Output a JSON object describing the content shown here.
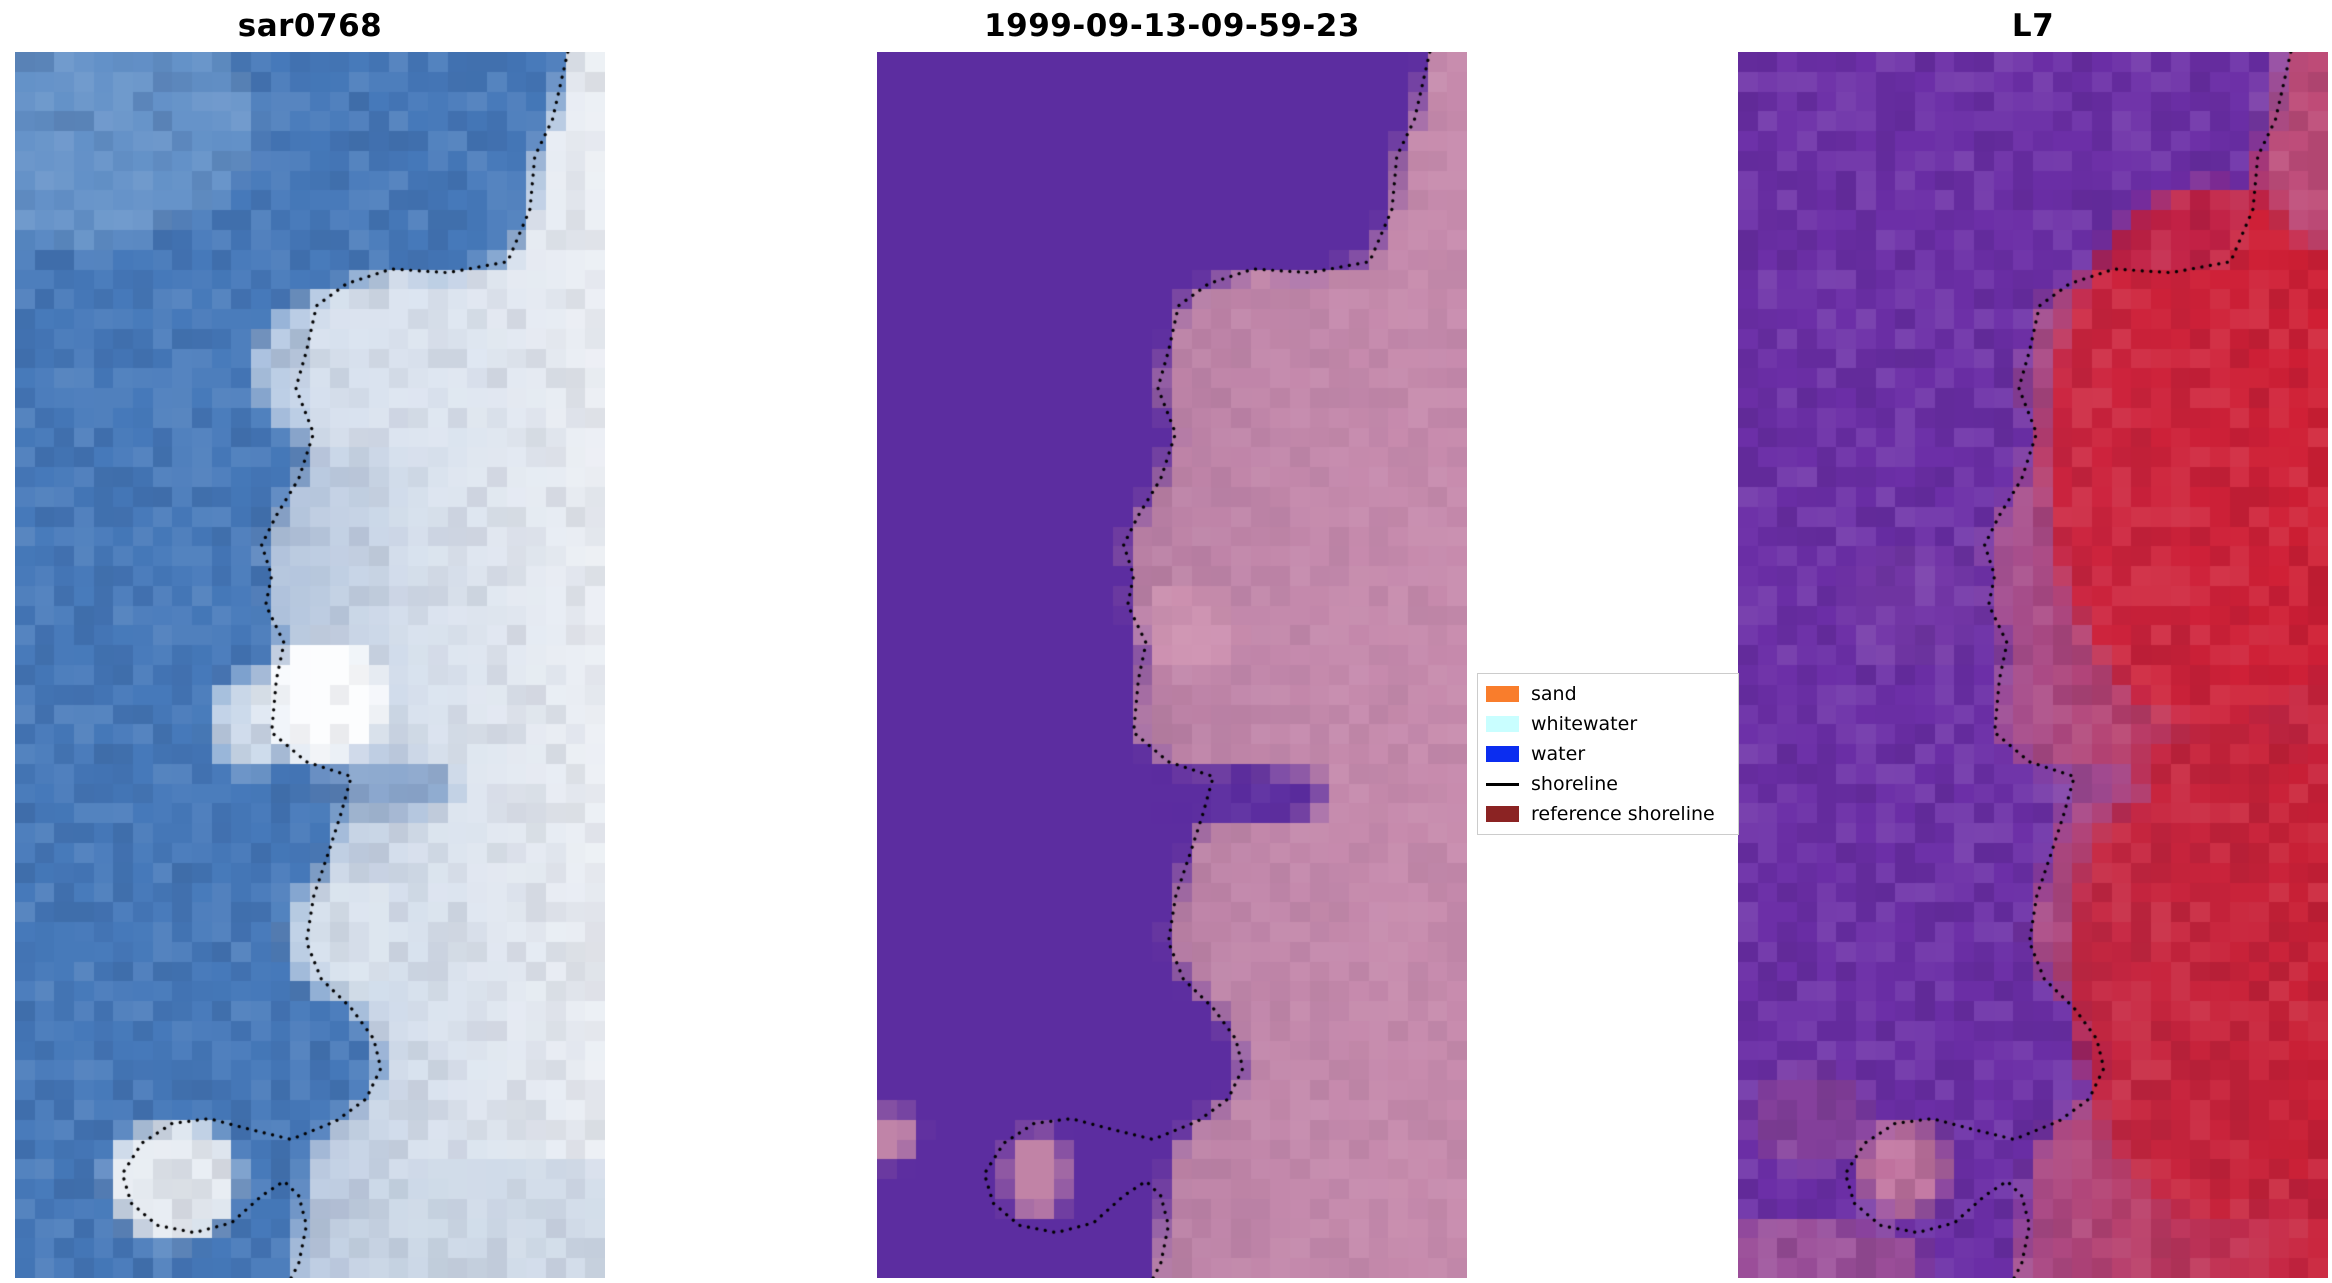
{
  "chart_data": {
    "type": "heatmap",
    "description": "Three-panel shoreline-detection figure: SAR image, classified image, and Landsat 7 image of the same coastal strip, each overlaid with the detected shoreline as a black dotted line. Water occupies the left of each panel, land/sand the right.",
    "panels": [
      {
        "title": "sar0768",
        "description": "SAR backscatter image: blue water on left, bright white/grey land on right, white blobs along coast",
        "water_color": "#4679ba",
        "land_gradient": [
          "#a8bcd8",
          "#d9e2ee",
          "#edf0f5"
        ],
        "noise": {
          "water": 0.1,
          "land": 0.08,
          "seed": 7
        },
        "blobs": [
          [
            0.12,
            0.06,
            0.3,
            0.1,
            "#7fa9d6",
            0.5
          ],
          [
            0.6,
            0.26,
            0.2,
            0.07,
            "#dfe7f1",
            0.75
          ],
          [
            0.52,
            0.53,
            0.11,
            0.05,
            "#ffffff",
            0.95
          ],
          [
            0.4,
            0.55,
            0.07,
            0.04,
            "#eef2f7",
            0.8
          ],
          [
            0.56,
            0.72,
            0.1,
            0.05,
            "#e2e9f1",
            0.75
          ],
          [
            0.62,
            0.6,
            0.13,
            0.022,
            "#5f87bd",
            0.6
          ],
          [
            0.27,
            0.92,
            0.11,
            0.05,
            "#f1f3f6",
            0.95
          ],
          [
            0.85,
            0.96,
            0.3,
            0.06,
            "#c9d5e5",
            0.7
          ]
        ]
      },
      {
        "title": "1999-09-13-09-59-23",
        "description": "Classified image: uniform purple water class on left, pink sand class on right, dotted detected shoreline at the class boundary",
        "water_color": "#5c2da0",
        "land_gradient": [
          "#b77da2",
          "#c489ac",
          "#c88cae"
        ],
        "noise": {
          "water": 0.0,
          "land": 0.05,
          "seed": 11
        },
        "blobs": [
          [
            0.62,
            0.605,
            0.14,
            0.025,
            "#5c2da0",
            1.0
          ],
          [
            0.53,
            0.47,
            0.08,
            0.04,
            "#cf93b2",
            0.9
          ],
          [
            0.025,
            0.885,
            0.045,
            0.022,
            "#c084a8",
            1.0
          ],
          [
            0.27,
            0.915,
            0.055,
            0.035,
            "#c183a6",
            1.0
          ]
        ]
      },
      {
        "title": "L7",
        "description": "Landsat 7 false-colour image: purple water on left grading to saturated red land on right, dotted detected shoreline along the boundary",
        "water_color": "#6c2fa7",
        "land_gradient": [
          "#a1559b",
          "#bb3a63",
          "#ca2038"
        ],
        "noise": {
          "water": 0.1,
          "land": 0.09,
          "seed": 23
        },
        "blobs": [
          [
            0.8,
            0.33,
            0.28,
            0.22,
            "#d11f34",
            0.85
          ],
          [
            0.82,
            0.75,
            0.26,
            0.2,
            "#cb2036",
            0.8
          ],
          [
            0.97,
            0.06,
            0.08,
            0.1,
            "#b867a0",
            0.6
          ],
          [
            0.3,
            0.45,
            0.12,
            0.05,
            "#7c3fa9",
            0.5
          ],
          [
            0.6,
            0.6,
            0.1,
            0.02,
            "#8b4fae",
            0.5
          ],
          [
            0.28,
            0.91,
            0.08,
            0.04,
            "#d07f9d",
            0.85
          ],
          [
            0.12,
            0.87,
            0.1,
            0.04,
            "#9a4f93",
            0.55
          ],
          [
            0.1,
            0.985,
            0.22,
            0.035,
            "#bb6490",
            0.6
          ]
        ]
      }
    ],
    "boundary_xy": [
      [
        0.937,
        0.0
      ],
      [
        0.911,
        0.055
      ],
      [
        0.881,
        0.085
      ],
      [
        0.873,
        0.128
      ],
      [
        0.835,
        0.171
      ],
      [
        0.734,
        0.18
      ],
      [
        0.638,
        0.177
      ],
      [
        0.562,
        0.189
      ],
      [
        0.511,
        0.207
      ],
      [
        0.494,
        0.244
      ],
      [
        0.476,
        0.274
      ],
      [
        0.506,
        0.311
      ],
      [
        0.481,
        0.348
      ],
      [
        0.443,
        0.378
      ],
      [
        0.418,
        0.402
      ],
      [
        0.435,
        0.427
      ],
      [
        0.425,
        0.451
      ],
      [
        0.456,
        0.482
      ],
      [
        0.443,
        0.512
      ],
      [
        0.435,
        0.555
      ],
      [
        0.494,
        0.579
      ],
      [
        0.57,
        0.591
      ],
      [
        0.552,
        0.622
      ],
      [
        0.532,
        0.652
      ],
      [
        0.506,
        0.689
      ],
      [
        0.494,
        0.726
      ],
      [
        0.519,
        0.756
      ],
      [
        0.57,
        0.78
      ],
      [
        0.608,
        0.805
      ],
      [
        0.62,
        0.829
      ],
      [
        0.595,
        0.854
      ],
      [
        0.544,
        0.872
      ],
      [
        0.5,
        0.9
      ],
      [
        0.49,
        0.94
      ],
      [
        0.475,
        0.97
      ],
      [
        0.468,
        1.0
      ]
    ],
    "shoreline_xy": [
      [
        0.937,
        0.0
      ],
      [
        0.911,
        0.055
      ],
      [
        0.881,
        0.085
      ],
      [
        0.873,
        0.128
      ],
      [
        0.835,
        0.171
      ],
      [
        0.734,
        0.18
      ],
      [
        0.638,
        0.177
      ],
      [
        0.562,
        0.189
      ],
      [
        0.511,
        0.207
      ],
      [
        0.494,
        0.244
      ],
      [
        0.476,
        0.274
      ],
      [
        0.506,
        0.311
      ],
      [
        0.481,
        0.348
      ],
      [
        0.443,
        0.378
      ],
      [
        0.418,
        0.402
      ],
      [
        0.435,
        0.427
      ],
      [
        0.425,
        0.451
      ],
      [
        0.456,
        0.482
      ],
      [
        0.443,
        0.512
      ],
      [
        0.435,
        0.555
      ],
      [
        0.494,
        0.579
      ],
      [
        0.57,
        0.591
      ],
      [
        0.552,
        0.622
      ],
      [
        0.532,
        0.652
      ],
      [
        0.506,
        0.689
      ],
      [
        0.494,
        0.726
      ],
      [
        0.519,
        0.756
      ],
      [
        0.57,
        0.78
      ],
      [
        0.608,
        0.805
      ],
      [
        0.62,
        0.829
      ],
      [
        0.595,
        0.854
      ],
      [
        0.544,
        0.872
      ],
      [
        0.468,
        0.887
      ],
      [
        0.392,
        0.878
      ],
      [
        0.329,
        0.87
      ],
      [
        0.266,
        0.874
      ],
      [
        0.215,
        0.89
      ],
      [
        0.182,
        0.915
      ],
      [
        0.197,
        0.939
      ],
      [
        0.241,
        0.957
      ],
      [
        0.304,
        0.963
      ],
      [
        0.367,
        0.955
      ],
      [
        0.418,
        0.933
      ],
      [
        0.456,
        0.921
      ],
      [
        0.481,
        0.933
      ],
      [
        0.494,
        0.957
      ],
      [
        0.481,
        0.988
      ],
      [
        0.468,
        1.0
      ]
    ],
    "legend": {
      "position": "center-right of middle panel",
      "border_color": "#cccccc",
      "entries": [
        {
          "label": "sand",
          "type": "patch",
          "color": "#f97d2c"
        },
        {
          "label": "whitewater",
          "type": "patch",
          "color": "#c9feff"
        },
        {
          "label": "water",
          "type": "patch",
          "color": "#0b2df0"
        },
        {
          "label": "shoreline",
          "type": "line",
          "color": "#000000"
        },
        {
          "label": "reference shoreline",
          "type": "patch",
          "color": "#8b2323"
        }
      ]
    }
  }
}
